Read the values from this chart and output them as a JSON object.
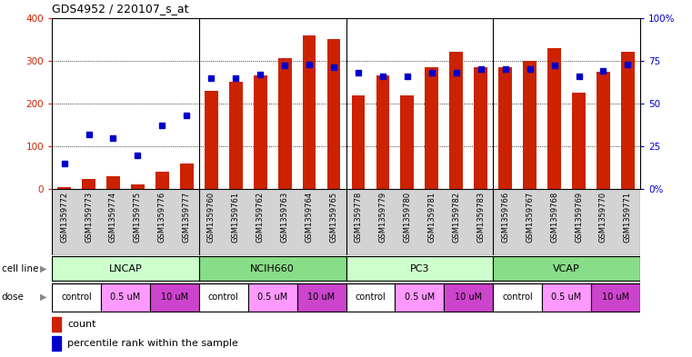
{
  "title": "GDS4952 / 220107_s_at",
  "samples": [
    "GSM1359772",
    "GSM1359773",
    "GSM1359774",
    "GSM1359775",
    "GSM1359776",
    "GSM1359777",
    "GSM1359760",
    "GSM1359761",
    "GSM1359762",
    "GSM1359763",
    "GSM1359764",
    "GSM1359765",
    "GSM1359778",
    "GSM1359779",
    "GSM1359780",
    "GSM1359781",
    "GSM1359782",
    "GSM1359783",
    "GSM1359766",
    "GSM1359767",
    "GSM1359768",
    "GSM1359769",
    "GSM1359770",
    "GSM1359771"
  ],
  "counts": [
    5,
    25,
    30,
    12,
    40,
    60,
    230,
    250,
    265,
    305,
    358,
    350,
    220,
    265,
    220,
    285,
    320,
    285,
    285,
    300,
    330,
    225,
    275,
    320
  ],
  "percentile_ranks": [
    15,
    32,
    30,
    20,
    37,
    43,
    65,
    65,
    67,
    72,
    73,
    71,
    68,
    66,
    66,
    68,
    68,
    70,
    70,
    70,
    72,
    66,
    69,
    73
  ],
  "cell_lines": [
    {
      "name": "LNCAP",
      "start": 0,
      "end": 6,
      "color": "#ccffcc"
    },
    {
      "name": "NCIH660",
      "start": 6,
      "end": 12,
      "color": "#88dd88"
    },
    {
      "name": "PC3",
      "start": 12,
      "end": 18,
      "color": "#ccffcc"
    },
    {
      "name": "VCAP",
      "start": 18,
      "end": 24,
      "color": "#88dd88"
    }
  ],
  "dose_groups": [
    {
      "name": "control",
      "start": 0,
      "end": 2,
      "color": "#ffffff"
    },
    {
      "name": "0.5 uM",
      "start": 2,
      "end": 4,
      "color": "#ff99ff"
    },
    {
      "name": "10 uM",
      "start": 4,
      "end": 6,
      "color": "#cc44cc"
    },
    {
      "name": "control",
      "start": 6,
      "end": 8,
      "color": "#ffffff"
    },
    {
      "name": "0.5 uM",
      "start": 8,
      "end": 10,
      "color": "#ff99ff"
    },
    {
      "name": "10 uM",
      "start": 10,
      "end": 12,
      "color": "#cc44cc"
    },
    {
      "name": "control",
      "start": 12,
      "end": 14,
      "color": "#ffffff"
    },
    {
      "name": "0.5 uM",
      "start": 14,
      "end": 16,
      "color": "#ff99ff"
    },
    {
      "name": "10 uM",
      "start": 16,
      "end": 18,
      "color": "#cc44cc"
    },
    {
      "name": "control",
      "start": 18,
      "end": 20,
      "color": "#ffffff"
    },
    {
      "name": "0.5 uM",
      "start": 20,
      "end": 22,
      "color": "#ff99ff"
    },
    {
      "name": "10 uM",
      "start": 22,
      "end": 24,
      "color": "#cc44cc"
    }
  ],
  "bar_color": "#cc2200",
  "dot_color": "#0000cc",
  "ylim_left": [
    0,
    400
  ],
  "ylim_right": [
    0,
    100
  ],
  "yticks_left": [
    0,
    100,
    200,
    300,
    400
  ],
  "yticks_right": [
    0,
    25,
    50,
    75,
    100
  ],
  "ytick_labels_right": [
    "0%",
    "25",
    "50",
    "75",
    "100%"
  ],
  "legend_count": "count",
  "legend_percentile": "percentile rank within the sample"
}
